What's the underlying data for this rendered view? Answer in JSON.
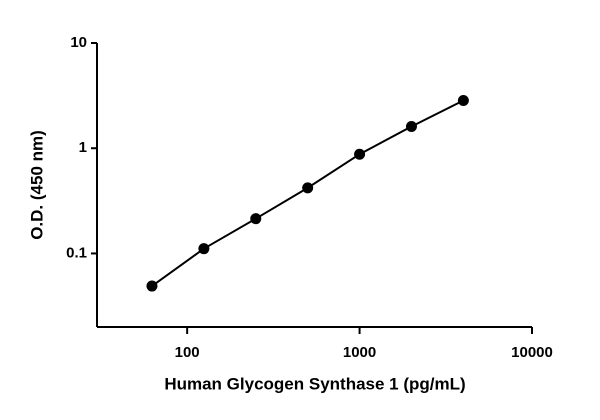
{
  "chart_data": {
    "type": "scatter",
    "x_label": "Human Glycogen Synthase 1 (pg/mL)",
    "y_label": "O.D. (450 nm)",
    "x": [
      62.5,
      125,
      250,
      500,
      1000,
      2000,
      4000
    ],
    "series": [
      {
        "color": "#000000",
        "values": [
          0.049,
          0.111,
          0.214,
          0.42,
          0.877,
          1.61,
          2.84
        ]
      }
    ],
    "xlim": [
      30,
      10000
    ],
    "xticks": [
      100,
      1000,
      10000
    ],
    "xscale": "log",
    "ylim": [
      0.02,
      10
    ],
    "yticks": [
      0.1,
      1,
      10
    ],
    "yscale": "log",
    "grid": false
  }
}
